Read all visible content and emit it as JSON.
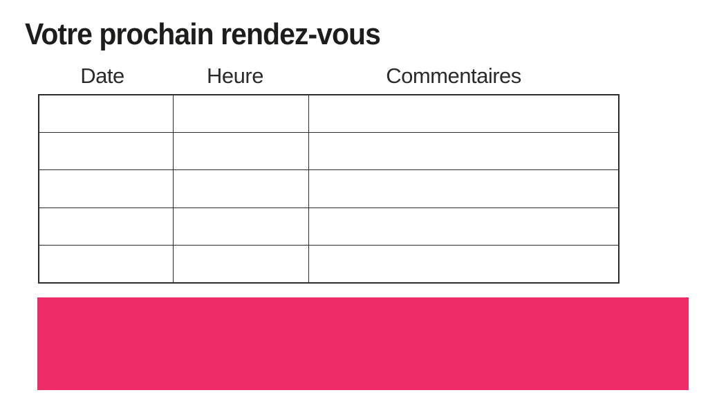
{
  "page": {
    "title": "Votre prochain rendez-vous"
  },
  "appointment_table": {
    "headers": [
      "Date",
      "Heure",
      "Commentaires"
    ],
    "rows": [
      {
        "date": "",
        "heure": "",
        "commentaires": ""
      },
      {
        "date": "",
        "heure": "",
        "commentaires": ""
      },
      {
        "date": "",
        "heure": "",
        "commentaires": ""
      },
      {
        "date": "",
        "heure": "",
        "commentaires": ""
      },
      {
        "date": "",
        "heure": "",
        "commentaires": ""
      }
    ]
  },
  "highlight_bar": {
    "text": "",
    "color": "#EE2C68"
  },
  "colors": {
    "title_text": "#1d1d1b",
    "header_text": "#2b2b2b",
    "table_border": "#2b2b2b",
    "accent_pink": "#EE2C68"
  }
}
